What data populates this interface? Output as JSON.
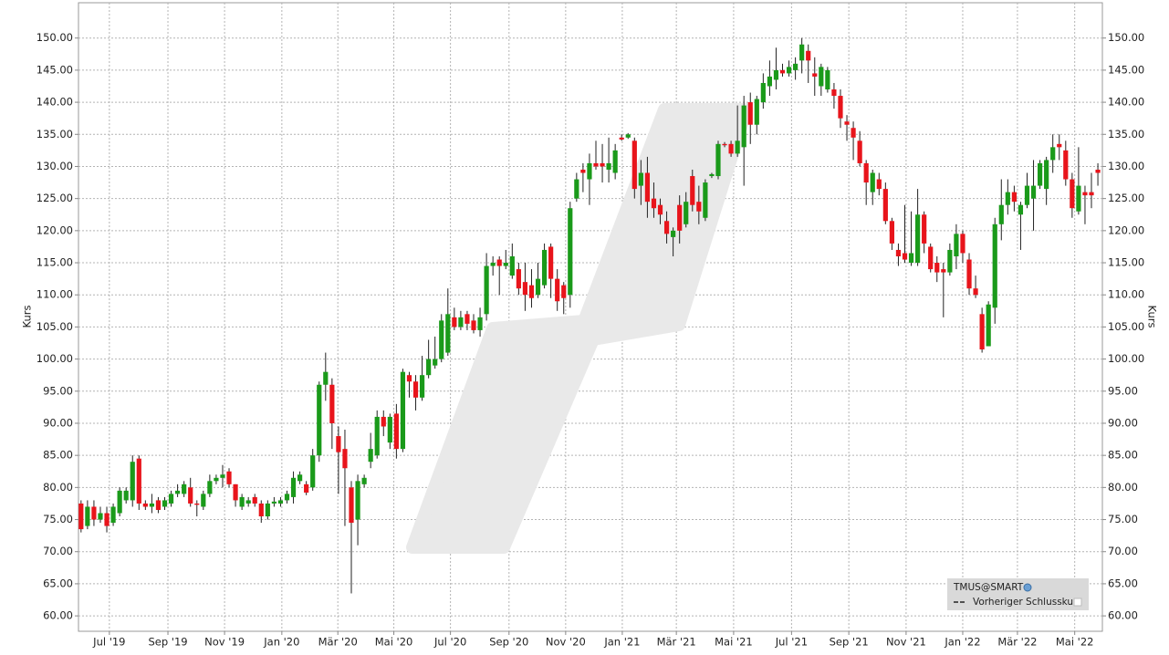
{
  "chart_data": {
    "type": "candlestick",
    "ylabel": "Kurs",
    "y2label": "Kurs",
    "up_color": "#1a9a1a",
    "down_color": "#e8141b",
    "grid": true,
    "legend": "bottom-right",
    "xlim": [
      -0.4,
      158.7
    ],
    "xticks": [
      {
        "value": 4.4,
        "label": "Jul '19"
      },
      {
        "value": 13.5,
        "label": "Sep '19"
      },
      {
        "value": 22.3,
        "label": "Nov '19"
      },
      {
        "value": 31.2,
        "label": "Jan '20"
      },
      {
        "value": 39.9,
        "label": "Mär '20"
      },
      {
        "value": 48.6,
        "label": "Mai '20"
      },
      {
        "value": 57.4,
        "label": "Jul '20"
      },
      {
        "value": 66.5,
        "label": "Sep '20"
      },
      {
        "value": 75.3,
        "label": "Nov '20"
      },
      {
        "value": 84.1,
        "label": "Jan '21"
      },
      {
        "value": 92.5,
        "label": "Mär '21"
      },
      {
        "value": 101.4,
        "label": "Mai '21"
      },
      {
        "value": 110.4,
        "label": "Jul '21"
      },
      {
        "value": 119.3,
        "label": "Sep '21"
      },
      {
        "value": 128.2,
        "label": "Nov '21"
      },
      {
        "value": 137.0,
        "label": "Jan '22"
      },
      {
        "value": 145.5,
        "label": "Mär '22"
      },
      {
        "value": 154.4,
        "label": "Mai '22"
      }
    ],
    "ylim": [
      57.6,
      155.5
    ],
    "yticks": [
      {
        "value": 60,
        "label": "60.00"
      },
      {
        "value": 65,
        "label": "65.00"
      },
      {
        "value": 70,
        "label": "70.00"
      },
      {
        "value": 75,
        "label": "75.00"
      },
      {
        "value": 80,
        "label": "80.00"
      },
      {
        "value": 85,
        "label": "85.00"
      },
      {
        "value": 90,
        "label": "90.00"
      },
      {
        "value": 95,
        "label": "95.00"
      },
      {
        "value": 100,
        "label": "100.00"
      },
      {
        "value": 105,
        "label": "105.00"
      },
      {
        "value": 110,
        "label": "110.00"
      },
      {
        "value": 115,
        "label": "115.00"
      },
      {
        "value": 120,
        "label": "120.00"
      },
      {
        "value": 125,
        "label": "125.00"
      },
      {
        "value": 130,
        "label": "130.00"
      },
      {
        "value": 135,
        "label": "135.00"
      },
      {
        "value": 140,
        "label": "140.00"
      },
      {
        "value": 145,
        "label": "145.00"
      },
      {
        "value": 150,
        "label": "150.00"
      }
    ],
    "series": [
      {
        "name": "TMUS@SMART",
        "open": [
          77.5,
          74,
          77,
          75,
          76,
          74.5,
          76,
          78,
          78,
          84.5,
          77.5,
          77,
          78,
          77,
          77.5,
          79,
          79,
          80,
          77.5,
          77,
          79,
          81,
          81.5,
          82.5,
          80.5,
          77,
          77.5,
          78.5,
          77.5,
          75.5,
          77.5,
          77.5,
          78,
          78.5,
          81,
          80.5,
          80,
          85,
          96,
          96,
          88,
          86,
          80,
          75,
          80.5,
          84,
          85,
          91,
          87,
          91.5,
          86,
          97.5,
          96.5,
          94,
          97.5,
          99,
          100,
          101,
          106.5,
          105,
          107,
          106,
          104.5,
          107,
          114.5,
          115.5,
          114.5,
          113,
          114,
          112,
          111.5,
          110,
          111.5,
          117.5,
          112.5,
          111.5,
          110,
          125,
          129.5,
          128,
          130.5,
          130.5,
          129.5,
          129,
          134.5,
          134.5,
          134,
          127,
          129,
          125,
          124,
          121.5,
          119,
          124,
          121,
          128.5,
          124.5,
          122,
          128.5,
          128.5,
          133.5,
          133.5,
          132,
          133,
          140,
          136.5,
          140,
          142.5,
          143.5,
          145,
          144.5,
          145,
          146.5,
          148,
          144.5,
          142.5,
          142,
          142,
          141,
          137,
          136,
          134,
          130.5,
          126,
          128,
          126.5,
          121.5,
          117,
          116.5,
          115,
          115,
          122.5,
          117.5,
          115,
          114,
          113.5,
          116,
          119.5,
          115.5,
          111,
          107,
          102,
          108,
          121,
          124,
          126,
          122.5,
          124,
          125,
          127,
          126.5,
          131,
          133.5,
          132.5,
          128,
          123,
          126,
          126,
          129.5
        ],
        "high": [
          78,
          78,
          78,
          77,
          77,
          77.5,
          80,
          80,
          85,
          85,
          78,
          79,
          78.5,
          78.5,
          79.5,
          80.5,
          81,
          81.5,
          78,
          79.5,
          82,
          82,
          83.5,
          83,
          80.5,
          79,
          78.5,
          79,
          78,
          78,
          78.5,
          78.5,
          79.5,
          82.5,
          82.5,
          81,
          86,
          96.5,
          101,
          97,
          89.5,
          89,
          81,
          82,
          82,
          88.5,
          92,
          92,
          91.5,
          93,
          98.5,
          98,
          97.5,
          100.5,
          103,
          103.5,
          107,
          111,
          108,
          107.5,
          107.5,
          107,
          108,
          116.5,
          116,
          116,
          117,
          118,
          115,
          115,
          114,
          115,
          118,
          118,
          114,
          112,
          124.5,
          129,
          130.5,
          132,
          134,
          133.5,
          134.5,
          133.5,
          135,
          135.2,
          134.5,
          131,
          131.5,
          127.5,
          125,
          123,
          120.5,
          125.5,
          126,
          129.5,
          127,
          128,
          129,
          134,
          133.8,
          134,
          139.5,
          141,
          141.5,
          141,
          144.5,
          146.5,
          148.5,
          146,
          146.5,
          147,
          150,
          149,
          147,
          146,
          145.5,
          143,
          142,
          138,
          137,
          135.5,
          131,
          129.5,
          129,
          127.5,
          122,
          118,
          124,
          123,
          126.5,
          123,
          118,
          116,
          115,
          118,
          121,
          120,
          116.5,
          113,
          108,
          109,
          122,
          128,
          128,
          127,
          124.5,
          129,
          131,
          131,
          131.5,
          135,
          135,
          134,
          129,
          133,
          127,
          129,
          130.5
        ],
        "low": [
          73,
          73.5,
          74,
          74.5,
          73,
          74,
          75.5,
          77.5,
          77,
          76.5,
          76.5,
          76,
          76,
          76.5,
          77,
          78.5,
          78.5,
          77,
          75.5,
          76.5,
          78.5,
          80.5,
          80,
          80,
          77,
          76.5,
          77,
          77,
          74.5,
          75,
          77,
          77,
          77.5,
          77.5,
          80.5,
          78.8,
          79.5,
          84,
          93.5,
          86,
          79,
          74,
          63.5,
          71,
          80,
          83,
          84.5,
          88,
          86,
          84.5,
          85.5,
          94,
          92,
          93.5,
          97,
          98.5,
          99.5,
          100.5,
          104.5,
          104.5,
          104.5,
          104,
          103.5,
          106,
          113,
          110,
          114,
          112.5,
          110,
          107.5,
          108,
          109.5,
          111,
          109.5,
          107.5,
          107,
          108,
          124.5,
          126,
          124,
          129.5,
          127.5,
          127.5,
          128,
          134,
          134.3,
          125,
          124,
          122,
          122,
          121,
          118,
          116,
          118,
          120.5,
          123,
          121,
          121.5,
          128.2,
          128,
          133,
          131.5,
          131.5,
          127,
          133.5,
          135,
          139,
          141,
          142,
          144,
          144,
          143.5,
          144.5,
          143,
          141,
          141,
          141.5,
          139,
          136,
          134,
          131,
          130,
          124,
          124,
          125.5,
          121,
          117,
          114.5,
          115,
          114.5,
          114.5,
          116.5,
          113.5,
          112,
          106.5,
          113,
          114,
          115,
          110,
          109.5,
          101,
          102,
          105.5,
          118.5,
          122.5,
          123,
          117,
          123.5,
          120,
          126.5,
          124,
          129,
          131,
          127,
          122,
          122.5,
          121,
          123.5,
          127
        ],
        "close": [
          73.5,
          77,
          75,
          76,
          74,
          77,
          79.5,
          79.5,
          84,
          77.5,
          77,
          77.5,
          76.5,
          78,
          79,
          79.5,
          80.5,
          77.5,
          77.3,
          79,
          81,
          81.5,
          82,
          80.5,
          78,
          78.5,
          78,
          77.5,
          75.5,
          77.5,
          77.8,
          78,
          79,
          81.5,
          82,
          79.2,
          85,
          96,
          98,
          90,
          85.5,
          83,
          74.5,
          81,
          81.5,
          86,
          91,
          89.5,
          91,
          86,
          98,
          96.5,
          94,
          97.5,
          100,
          100,
          106,
          107,
          105,
          106.5,
          105.5,
          104.5,
          106.5,
          114.5,
          115,
          114.5,
          115,
          116,
          111,
          110,
          109.5,
          112.5,
          117,
          112.5,
          109,
          109.5,
          123.5,
          128,
          129,
          130.5,
          130,
          130,
          130.5,
          132.5,
          134.2,
          135,
          126.5,
          129,
          124.5,
          123.5,
          122.5,
          119.5,
          120,
          120,
          124.5,
          124,
          123,
          127.5,
          128.8,
          133.5,
          133.3,
          132,
          134,
          139.5,
          136.5,
          140.5,
          143,
          144,
          145,
          144.5,
          145.5,
          146,
          149,
          146.5,
          144,
          145.5,
          145,
          141,
          137.5,
          136.5,
          134.5,
          130.5,
          127.5,
          129,
          126.5,
          121.5,
          118,
          116,
          115.5,
          116.5,
          122.5,
          118,
          114,
          113.5,
          113.5,
          117,
          119.5,
          116.5,
          111,
          110,
          101.5,
          108.5,
          121,
          124,
          126,
          124.5,
          124,
          127,
          127,
          130.5,
          131,
          133,
          133,
          128,
          123.5,
          127,
          125.5,
          125.5,
          129
        ]
      }
    ],
    "reference_line": {
      "name": "Vorheriger Schlusskurs"
    }
  }
}
